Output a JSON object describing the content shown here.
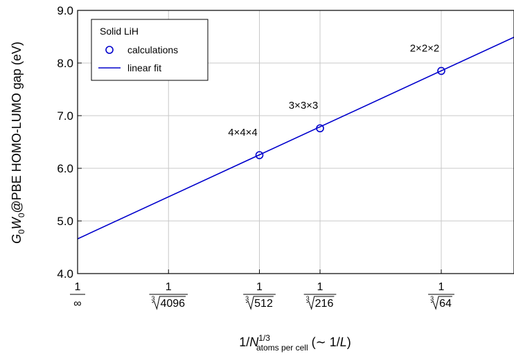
{
  "chart_data": {
    "type": "scatter",
    "legend": {
      "title": "Solid LiH",
      "placement": "top-left",
      "entries": [
        {
          "label": "calculations",
          "marker": "circle",
          "color": "#0000cc"
        },
        {
          "label": "linear fit",
          "marker": "line",
          "color": "#0000cc"
        }
      ]
    },
    "xlabel": {
      "prefix": "1/",
      "symbol": "N",
      "superscript": "1/3",
      "subscript": "atoms per cell",
      "suffix": " (∼ 1/",
      "italic": "L",
      "close": ")"
    },
    "ylabel": {
      "g": "G",
      "g_sub": "0",
      "w": "W",
      "w_sub": "0",
      "rest": "@PBE HOMO-LUMO gap (eV)"
    },
    "xlim": [
      0,
      0.3
    ],
    "ylim": [
      4.0,
      9.0
    ],
    "yticks": [
      4.0,
      5.0,
      6.0,
      7.0,
      8.0,
      9.0
    ],
    "ytick_labels": [
      "4.0",
      "5.0",
      "6.0",
      "7.0",
      "8.0",
      "9.0"
    ],
    "xticks": [
      {
        "x": 0,
        "num": "1",
        "den": "∞"
      },
      {
        "x": 0.0625,
        "num": "1",
        "den": "4096"
      },
      {
        "x": 0.125,
        "num": "1",
        "den": "512"
      },
      {
        "x": 0.16667,
        "num": "1",
        "den": "216"
      },
      {
        "x": 0.25,
        "num": "1",
        "den": "64"
      }
    ],
    "points": [
      {
        "x": 0.125,
        "y": 6.25,
        "label": "4×4×4"
      },
      {
        "x": 0.16667,
        "y": 6.76,
        "label": "3×3×3"
      },
      {
        "x": 0.25,
        "y": 7.85,
        "label": "2×2×2"
      }
    ],
    "fit": {
      "intercept": 4.66,
      "slope": 12.77
    },
    "grid": true,
    "color": "#0000cc"
  }
}
